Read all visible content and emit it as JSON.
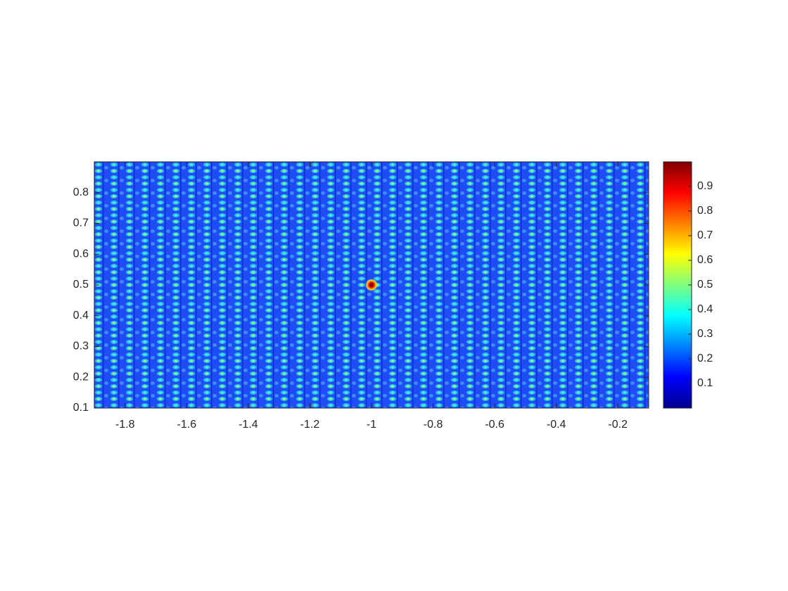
{
  "chart_data": {
    "type": "heatmap",
    "colormap": "jet",
    "xlim": [
      -1.9,
      -0.1
    ],
    "xticks": [
      -1.8,
      -1.6,
      -1.4,
      -1.2,
      -1,
      -0.8,
      -0.6,
      -0.4,
      -0.2
    ],
    "ylim": [
      0.1,
      0.9
    ],
    "yticks": [
      0.1,
      0.2,
      0.3,
      0.4,
      0.5,
      0.6,
      0.7,
      0.8
    ],
    "clim": [
      0,
      1
    ],
    "cticks": [
      0.1,
      0.2,
      0.3,
      0.4,
      0.5,
      0.6,
      0.7,
      0.8,
      0.9
    ],
    "peak": {
      "x": -1,
      "y": 0.5,
      "value": 1
    }
  }
}
